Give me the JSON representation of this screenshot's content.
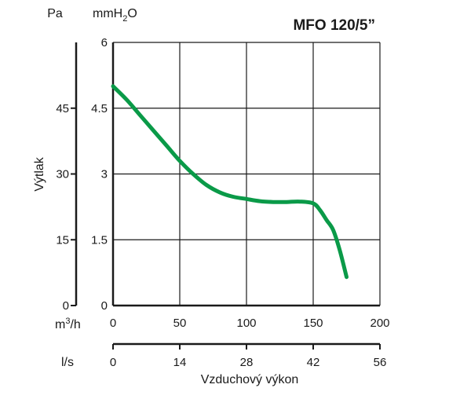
{
  "chart_data": {
    "type": "line",
    "title": "MFO 120/5”",
    "units": {
      "pa": "Pa",
      "mmh2o_prefix": "mmH",
      "mmh2o_sub": "2",
      "mmh2o_suffix": "O",
      "m3h_prefix": "m",
      "m3h_sup": "3",
      "m3h_suffix": "/h",
      "ls": "l/s"
    },
    "ylabel": "Výtlak",
    "xlabel": "Vzduchový výkon",
    "x_axis": {
      "unit": "m3/h",
      "range": [
        0,
        200
      ],
      "ticks": [
        "0",
        "50",
        "100",
        "150",
        "200"
      ]
    },
    "x2_axis": {
      "unit": "l/s",
      "range": [
        0,
        56
      ],
      "ticks": [
        "0",
        "14",
        "28",
        "42",
        "56"
      ]
    },
    "y_axis": {
      "unit": "mmH2O",
      "range": [
        0,
        6
      ],
      "ticks": [
        "0",
        "1.5",
        "3",
        "4.5",
        "6"
      ]
    },
    "y2_axis": {
      "unit": "Pa",
      "ticks": [
        "0",
        "15",
        "30",
        "45"
      ],
      "tick_positions_mmh2o": [
        0,
        1.5,
        3,
        4.5
      ]
    },
    "grid": true,
    "series": [
      {
        "color": "#0a9a48",
        "points": [
          [
            0,
            5.0
          ],
          [
            10,
            4.7
          ],
          [
            20,
            4.35
          ],
          [
            30,
            4.0
          ],
          [
            40,
            3.65
          ],
          [
            50,
            3.3
          ],
          [
            60,
            3.0
          ],
          [
            70,
            2.75
          ],
          [
            80,
            2.58
          ],
          [
            90,
            2.48
          ],
          [
            100,
            2.43
          ],
          [
            110,
            2.38
          ],
          [
            120,
            2.36
          ],
          [
            130,
            2.36
          ],
          [
            140,
            2.37
          ],
          [
            150,
            2.33
          ],
          [
            155,
            2.18
          ],
          [
            160,
            1.95
          ],
          [
            165,
            1.72
          ],
          [
            170,
            1.25
          ],
          [
            175,
            0.65
          ]
        ]
      }
    ]
  }
}
